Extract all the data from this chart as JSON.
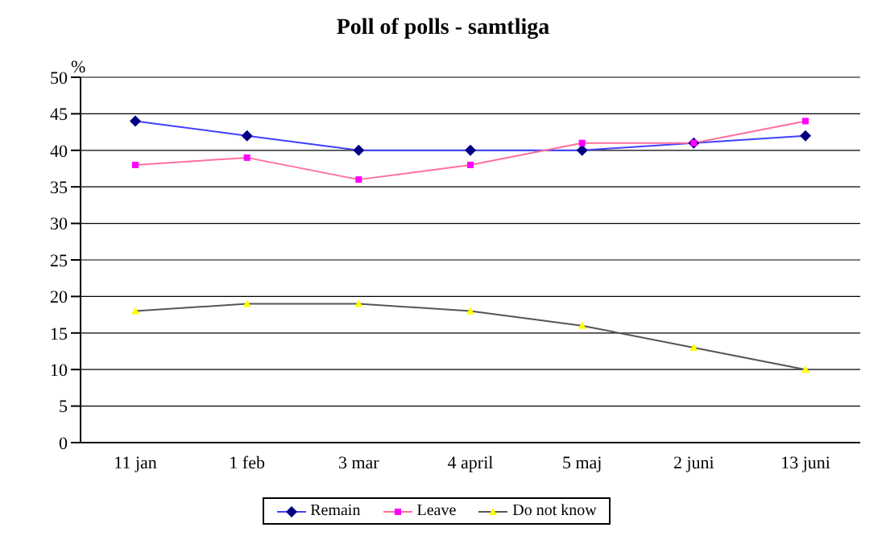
{
  "chart_data": {
    "type": "line",
    "title": "Poll of polls - samtliga",
    "ylabel": "%",
    "categories": [
      "11 jan",
      "1 feb",
      "3 mar",
      "4 april",
      "5 maj",
      "2 juni",
      "13 juni"
    ],
    "series": [
      {
        "name": "Remain",
        "color": "#4040ff",
        "marker": "diamond",
        "values": [
          44,
          42,
          40,
          40,
          40,
          41,
          42
        ]
      },
      {
        "name": "Leave",
        "color": "#ff6f9a",
        "marker": "square",
        "values": [
          38,
          39,
          36,
          38,
          41,
          41,
          44
        ]
      },
      {
        "name": "Do not know",
        "color": "#555555",
        "marker": "triangle",
        "values": [
          18,
          19,
          19,
          18,
          16,
          13,
          10
        ]
      }
    ],
    "ylim": [
      0,
      50
    ],
    "yticks": [
      0,
      5,
      10,
      15,
      20,
      25,
      30,
      35,
      40,
      45,
      50
    ],
    "grid": "y",
    "legend": "bottom"
  }
}
